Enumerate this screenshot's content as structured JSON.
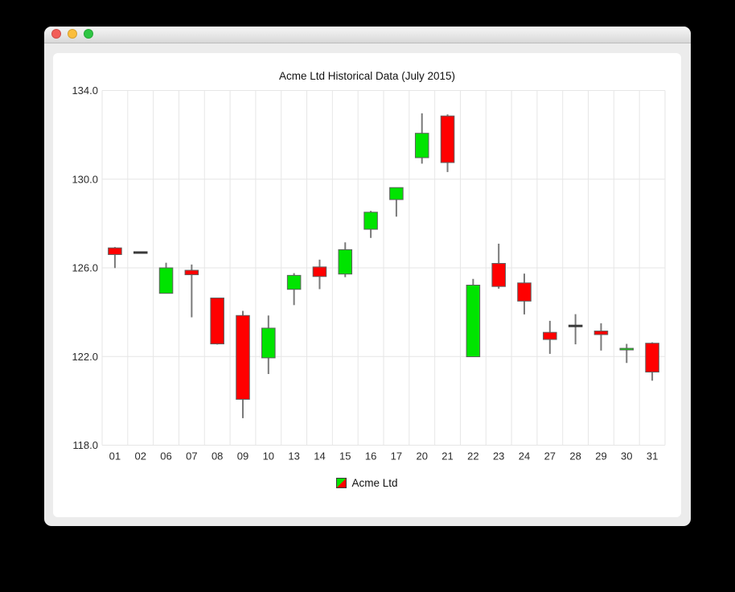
{
  "window": {
    "traffic_lights": [
      {
        "name": "close",
        "color": "#f25d58"
      },
      {
        "name": "minimize",
        "color": "#fbbe3c"
      },
      {
        "name": "zoom",
        "color": "#2ec643"
      }
    ]
  },
  "chart_data": {
    "type": "candlestick",
    "title": "Acme Ltd Historical Data (July 2015)",
    "legend": {
      "position": "bottom",
      "label": "Acme Ltd"
    },
    "colors": {
      "increasing": "#00e400",
      "decreasing": "#ff0000",
      "neutral": "#3a3a3a",
      "wick": "#7a7a7a",
      "body_border": "#5f5f5f",
      "gridline": "#e6e6e6",
      "label": "#2b2b2b"
    },
    "y_axis": {
      "min": 118.0,
      "max": 134.0,
      "ticks": [
        134.0,
        130.0,
        126.0,
        122.0,
        118.0
      ],
      "tick_labels": [
        "134.0",
        "130.0",
        "126.0",
        "122.0",
        "118.0"
      ],
      "grid": true
    },
    "x_axis": {
      "categories": [
        "01",
        "02",
        "06",
        "07",
        "08",
        "09",
        "10",
        "13",
        "14",
        "15",
        "16",
        "17",
        "20",
        "21",
        "22",
        "23",
        "24",
        "27",
        "28",
        "29",
        "30",
        "31"
      ]
    },
    "series": {
      "name": "Acme Ltd",
      "data": [
        {
          "date": "01",
          "open": 126.9,
          "high": 126.94,
          "low": 125.99,
          "close": 126.6
        },
        {
          "date": "02",
          "open": 126.69,
          "high": 126.69,
          "low": 126.69,
          "close": 126.69
        },
        {
          "date": "06",
          "open": 124.85,
          "high": 126.23,
          "low": 124.85,
          "close": 126.0
        },
        {
          "date": "07",
          "open": 125.89,
          "high": 126.15,
          "low": 123.77,
          "close": 125.69
        },
        {
          "date": "08",
          "open": 124.64,
          "high": 124.64,
          "low": 122.54,
          "close": 122.57
        },
        {
          "date": "09",
          "open": 123.85,
          "high": 124.06,
          "low": 119.22,
          "close": 120.07
        },
        {
          "date": "10",
          "open": 121.94,
          "high": 123.85,
          "low": 121.21,
          "close": 123.28
        },
        {
          "date": "13",
          "open": 125.03,
          "high": 125.76,
          "low": 124.32,
          "close": 125.66
        },
        {
          "date": "14",
          "open": 126.04,
          "high": 126.37,
          "low": 125.04,
          "close": 125.61
        },
        {
          "date": "15",
          "open": 125.72,
          "high": 127.15,
          "low": 125.58,
          "close": 126.82
        },
        {
          "date": "16",
          "open": 127.74,
          "high": 128.57,
          "low": 127.35,
          "close": 128.51
        },
        {
          "date": "17",
          "open": 129.08,
          "high": 129.62,
          "low": 128.31,
          "close": 129.62
        },
        {
          "date": "20",
          "open": 130.97,
          "high": 132.97,
          "low": 130.7,
          "close": 132.07
        },
        {
          "date": "21",
          "open": 132.85,
          "high": 132.92,
          "low": 130.32,
          "close": 130.75
        },
        {
          "date": "22",
          "open": 121.99,
          "high": 125.5,
          "low": 121.99,
          "close": 125.22
        },
        {
          "date": "23",
          "open": 126.2,
          "high": 127.09,
          "low": 125.06,
          "close": 125.16
        },
        {
          "date": "24",
          "open": 125.32,
          "high": 125.74,
          "low": 123.9,
          "close": 124.5
        },
        {
          "date": "27",
          "open": 123.09,
          "high": 123.61,
          "low": 122.12,
          "close": 122.77
        },
        {
          "date": "28",
          "open": 123.38,
          "high": 123.91,
          "low": 122.55,
          "close": 123.38
        },
        {
          "date": "29",
          "open": 123.15,
          "high": 123.5,
          "low": 122.27,
          "close": 122.99
        },
        {
          "date": "30",
          "open": 122.32,
          "high": 122.57,
          "low": 121.71,
          "close": 122.37
        },
        {
          "date": "31",
          "open": 122.6,
          "high": 122.64,
          "low": 120.91,
          "close": 121.3
        }
      ]
    }
  }
}
